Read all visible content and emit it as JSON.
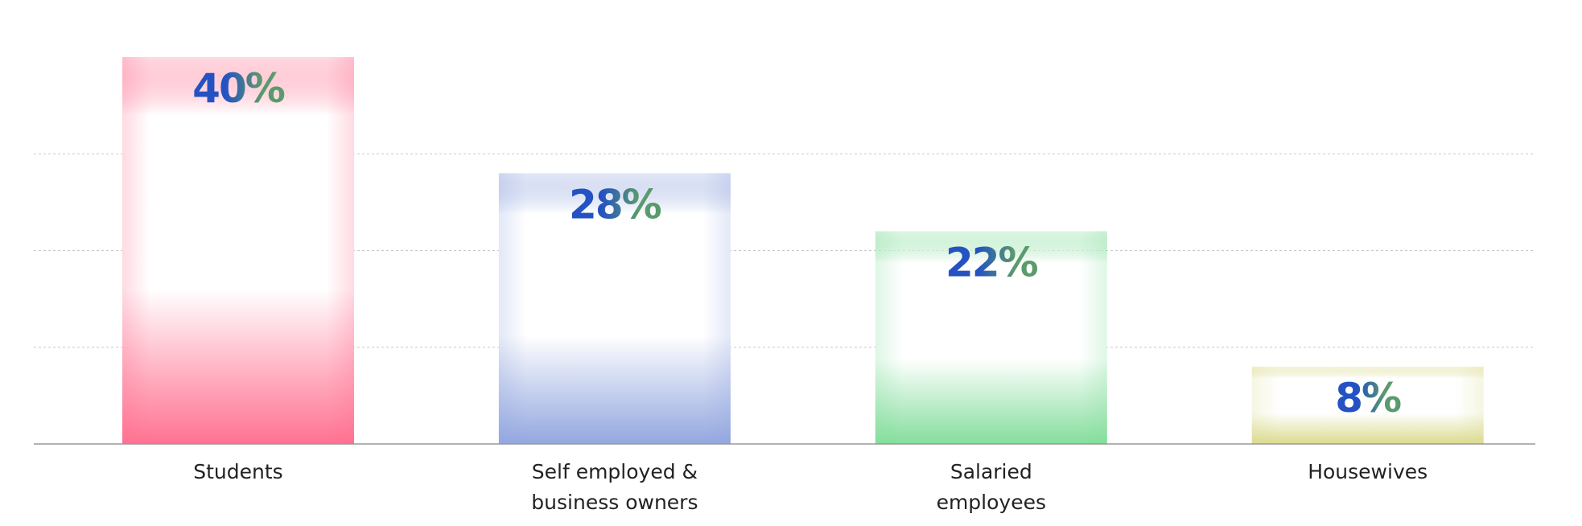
{
  "chart_data": {
    "type": "bar",
    "categories": [
      "Students",
      "Self employed &\nbusiness owners",
      "Salaried\nemployees",
      "Housewives"
    ],
    "values": [
      40,
      28,
      22,
      8
    ],
    "value_labels": [
      "40%",
      "28%",
      "22%",
      "8%"
    ],
    "colors": [
      "#ff6b8c",
      "#8ea3de",
      "#7fdc98",
      "#d9d98a"
    ],
    "ylim": [
      0,
      40
    ],
    "yticks": [
      10,
      20,
      30
    ],
    "grid": true
  }
}
